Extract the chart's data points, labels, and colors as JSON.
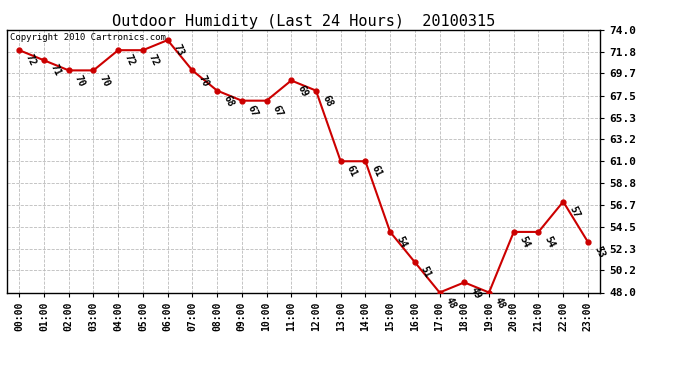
{
  "title": "Outdoor Humidity (Last 24 Hours)  20100315",
  "copyright": "Copyright 2010 Cartronics.com",
  "hours": [
    "00:00",
    "01:00",
    "02:00",
    "03:00",
    "04:00",
    "05:00",
    "06:00",
    "07:00",
    "08:00",
    "09:00",
    "10:00",
    "11:00",
    "12:00",
    "13:00",
    "14:00",
    "15:00",
    "16:00",
    "17:00",
    "18:00",
    "19:00",
    "20:00",
    "21:00",
    "22:00",
    "23:00"
  ],
  "values": [
    72,
    71,
    70,
    70,
    72,
    72,
    73,
    70,
    68,
    67,
    67,
    69,
    68,
    61,
    61,
    54,
    51,
    48,
    49,
    48,
    54,
    54,
    57,
    53
  ],
  "ylim_min": 48.0,
  "ylim_max": 74.0,
  "yticks": [
    48.0,
    50.2,
    52.3,
    54.5,
    56.7,
    58.8,
    61.0,
    63.2,
    65.3,
    67.5,
    69.7,
    71.8,
    74.0
  ],
  "ytick_labels": [
    "48.0",
    "50.2",
    "52.3",
    "54.5",
    "56.7",
    "58.8",
    "61.0",
    "63.2",
    "65.3",
    "67.5",
    "69.7",
    "71.8",
    "74.0"
  ],
  "line_color": "#cc0000",
  "marker_color": "#cc0000",
  "bg_color": "#ffffff",
  "grid_color": "#bbbbbb",
  "title_fontsize": 11,
  "annotation_fontsize": 7,
  "copyright_fontsize": 6.5,
  "xtick_fontsize": 7,
  "ytick_fontsize": 8
}
